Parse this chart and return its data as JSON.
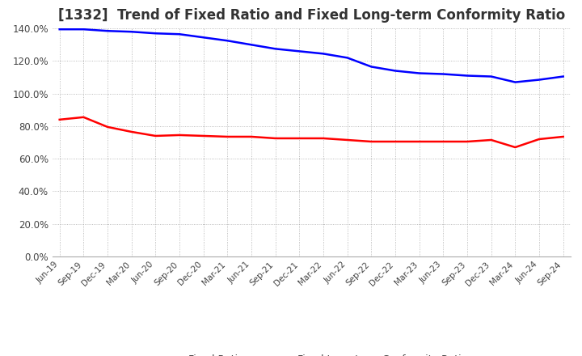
{
  "title": "[1332]  Trend of Fixed Ratio and Fixed Long-term Conformity Ratio",
  "x_labels": [
    "Jun-19",
    "Sep-19",
    "Dec-19",
    "Mar-20",
    "Jun-20",
    "Sep-20",
    "Dec-20",
    "Mar-21",
    "Jun-21",
    "Sep-21",
    "Dec-21",
    "Mar-22",
    "Jun-22",
    "Sep-22",
    "Dec-22",
    "Mar-23",
    "Jun-23",
    "Sep-23",
    "Dec-23",
    "Mar-24",
    "Jun-24",
    "Sep-24"
  ],
  "fixed_ratio": [
    139.5,
    139.5,
    138.5,
    138.0,
    137.0,
    136.5,
    134.5,
    132.5,
    130.0,
    127.5,
    126.0,
    124.5,
    122.0,
    116.5,
    114.0,
    112.5,
    112.0,
    111.0,
    110.5,
    107.0,
    108.5,
    110.5
  ],
  "fixed_longterm_ratio": [
    84.0,
    85.5,
    79.5,
    76.5,
    74.0,
    74.5,
    74.0,
    73.5,
    73.5,
    72.5,
    72.5,
    72.5,
    71.5,
    70.5,
    70.5,
    70.5,
    70.5,
    70.5,
    71.5,
    67.0,
    72.0,
    73.5
  ],
  "fixed_ratio_color": "#0000FF",
  "fixed_longterm_ratio_color": "#FF0000",
  "ylim": [
    0,
    140
  ],
  "yticks": [
    0,
    20,
    40,
    60,
    80,
    100,
    120,
    140
  ],
  "background_color": "#FFFFFF",
  "grid_color": "#AAAAAA",
  "title_fontsize": 12,
  "legend_labels": [
    "Fixed Ratio",
    "Fixed Long-term Conformity Ratio"
  ]
}
